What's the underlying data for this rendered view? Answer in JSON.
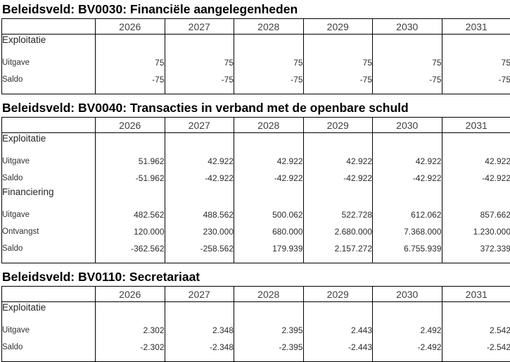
{
  "colors": {
    "background": "#ffffff",
    "border": "#000000",
    "title_text": "#000000",
    "year_header_text": "#3d3f41",
    "body_text": "#2a2b2d"
  },
  "tables": [
    {
      "title": "Beleidsveld: BV0030: Financiële aangelegenheden",
      "years": [
        "2026",
        "2027",
        "2028",
        "2029",
        "2030",
        "2031"
      ],
      "rows": [
        {
          "type": "section",
          "label": "Exploitatie"
        },
        {
          "type": "data",
          "label": "Uitgave",
          "values": [
            "75",
            "75",
            "75",
            "75",
            "75",
            "75"
          ]
        },
        {
          "type": "data",
          "label": "Saldo",
          "values": [
            "-75",
            "-75",
            "-75",
            "-75",
            "-75",
            "-75"
          ]
        }
      ]
    },
    {
      "title": "Beleidsveld: BV0040: Transacties in verband met de openbare schuld",
      "years": [
        "2026",
        "2027",
        "2028",
        "2029",
        "2030",
        "2031"
      ],
      "rows": [
        {
          "type": "section",
          "label": "Exploitatie"
        },
        {
          "type": "data",
          "label": "Uitgave",
          "values": [
            "51.962",
            "42.922",
            "42.922",
            "42.922",
            "42.922",
            "42.922"
          ]
        },
        {
          "type": "data",
          "label": "Saldo",
          "values": [
            "-51.962",
            "-42.922",
            "-42.922",
            "-42.922",
            "-42.922",
            "-42.922"
          ]
        },
        {
          "type": "section",
          "label": "Financiering"
        },
        {
          "type": "data",
          "label": "Uitgave",
          "values": [
            "482.562",
            "488.562",
            "500.062",
            "522.728",
            "612.062",
            "857.662"
          ]
        },
        {
          "type": "data",
          "label": "Ontvangst",
          "values": [
            "120.000",
            "230.000",
            "680.000",
            "2.680.000",
            "7.368.000",
            "1.230.000"
          ]
        },
        {
          "type": "data",
          "label": "Saldo",
          "values": [
            "-362.562",
            "-258.562",
            "179.939",
            "2.157.272",
            "6.755.939",
            "372.339"
          ]
        }
      ]
    },
    {
      "title": "Beleidsveld: BV0110: Secretariaat",
      "years": [
        "2026",
        "2027",
        "2028",
        "2029",
        "2030",
        "2031"
      ],
      "rows": [
        {
          "type": "section",
          "label": "Exploitatie"
        },
        {
          "type": "data",
          "label": "Uitgave",
          "values": [
            "2.302",
            "2.348",
            "2.395",
            "2.443",
            "2.492",
            "2.542"
          ]
        },
        {
          "type": "data",
          "label": "Saldo",
          "values": [
            "-2.302",
            "-2.348",
            "-2.395",
            "-2.443",
            "-2.492",
            "-2.542"
          ]
        }
      ]
    }
  ]
}
